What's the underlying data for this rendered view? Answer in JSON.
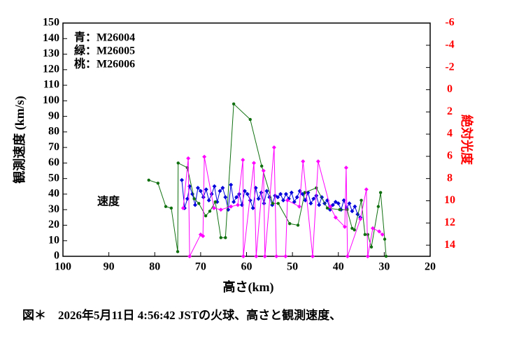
{
  "chart_data": {
    "type": "line",
    "xlabel": "高さ(km)",
    "ylabel": "観測速度 (km/s)",
    "y2label": "絶対光度",
    "annotation": "速度",
    "caption": "図＊　2026年5月11日 4:56:42 JSTの火球、高さと観測速度、",
    "xlim": [
      100,
      20
    ],
    "xticks": [
      100,
      90,
      80,
      70,
      60,
      50,
      40,
      30,
      20
    ],
    "ylim": [
      0,
      150
    ],
    "yticks": [
      0,
      10,
      20,
      30,
      40,
      50,
      60,
      70,
      80,
      90,
      100,
      110,
      120,
      130,
      140,
      150
    ],
    "y2lim": [
      15,
      -6
    ],
    "y2ticks": [
      -6,
      -4,
      -2,
      0,
      2,
      4,
      6,
      8,
      10,
      12,
      14
    ],
    "y2color": "#ff0000",
    "series": [
      {
        "name": "青：M26004",
        "color": "#0000dd",
        "marker": "diamond",
        "x": [
          74.1,
          73.5,
          72.9,
          72.4,
          71.8,
          71.2,
          70.6,
          70.0,
          69.4,
          68.8,
          68.2,
          67.6,
          67.0,
          66.4,
          65.8,
          65.2,
          64.6,
          64.0,
          63.4,
          62.8,
          62.2,
          61.6,
          61.0,
          60.4,
          59.8,
          59.2,
          58.6,
          58.0,
          57.4,
          56.8,
          56.2,
          55.6,
          55.0,
          54.4,
          53.8,
          53.2,
          52.6,
          52.0,
          51.4,
          50.8,
          50.2,
          49.6,
          49.0,
          48.4,
          47.8,
          47.2,
          46.6,
          46.0,
          45.4,
          44.8,
          44.2,
          43.6,
          43.0,
          42.4,
          41.8,
          41.2,
          40.6,
          40.0,
          39.4,
          38.8,
          38.2,
          37.6,
          37.0,
          36.4,
          35.8,
          35.2
        ],
        "values": [
          49,
          31,
          37,
          45,
          40,
          33,
          44,
          42,
          38,
          43,
          36,
          40,
          45,
          35,
          42,
          44,
          38,
          30,
          46,
          35,
          38,
          40,
          33,
          42,
          40,
          36,
          31,
          44,
          37,
          41,
          34,
          42,
          38,
          33,
          39,
          38,
          40,
          36,
          40,
          37,
          41,
          35,
          38,
          42,
          40,
          36,
          41,
          34,
          37,
          39,
          33,
          38,
          34,
          36,
          30,
          33,
          35,
          34,
          30,
          36,
          31,
          34,
          29,
          32,
          27,
          25
        ]
      },
      {
        "name": "緑：M26005",
        "color": "#107010",
        "marker": "circle",
        "x": [
          81.3,
          79.3,
          77.6,
          76.4,
          75.0,
          74.9,
          72.9,
          71.4,
          70.4,
          68.9,
          68.0,
          66.8,
          65.6,
          64.6,
          62.8,
          59.2,
          56.7,
          54.3,
          53.1,
          50.6,
          48.8,
          47.3,
          44.8,
          42.4,
          39.7,
          38.1,
          37.0,
          36.5,
          35.0,
          34.2,
          33.6,
          32.8,
          31.3,
          30.8,
          29.9,
          29.6
        ],
        "values": [
          49,
          47,
          32,
          31,
          3,
          60,
          57,
          37,
          34,
          26,
          29,
          35,
          12,
          12,
          98,
          88,
          58,
          34,
          34,
          21,
          20,
          41,
          44,
          31,
          30,
          30,
          18,
          17,
          36,
          14,
          14,
          6,
          32,
          41,
          11,
          0
        ]
      },
      {
        "name": "桃：M26006",
        "color": "#ff00ff",
        "marker": "diamond",
        "x": [
          73.8,
          72.7,
          72.4,
          70.0,
          69.5,
          69.2,
          67.1,
          65.6,
          63.4,
          61.9,
          60.8,
          60.7,
          58.4,
          57.9,
          56.3,
          56.0,
          54.0,
          53.5,
          51.5,
          51.1,
          48.5,
          47.7,
          45.6,
          44.4,
          41.8,
          40.6,
          38.6,
          38.3,
          38.0,
          35.2,
          33.9,
          33.6,
          32.5,
          31.1,
          30.4
        ],
        "values": [
          31,
          63,
          0,
          14,
          13,
          64,
          31,
          30,
          32,
          33,
          62,
          0,
          60,
          0,
          55,
          0,
          70,
          0,
          0,
          36,
          32,
          61,
          0,
          61,
          32,
          25,
          19,
          57,
          0,
          24,
          43,
          0,
          18,
          16,
          14
        ]
      }
    ]
  }
}
